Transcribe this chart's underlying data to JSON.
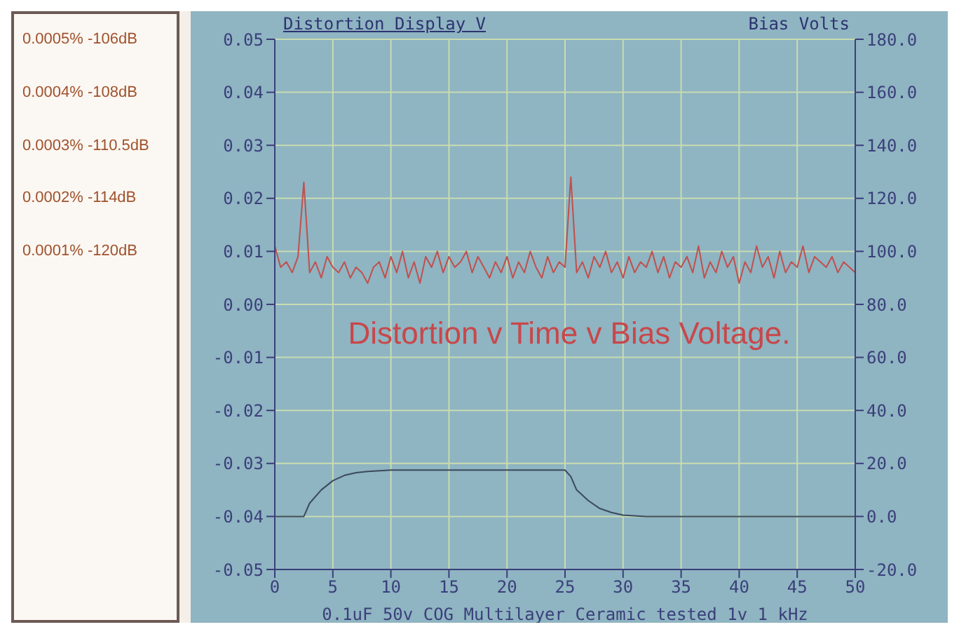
{
  "chart_data": {
    "type": "line",
    "title": "Distortion Display V",
    "subtitle": "Distortion v Time v Bias Voltage.",
    "xlabel": "0.1uF 50v COG Multilayer Ceramic tested 1v 1 kHz",
    "y2label": "Bias Volts",
    "annotations": [
      "0.0005% -106dB",
      "0.0004% -108dB",
      "0.0003% -110.5dB",
      "0.0002% -114dB",
      "0.0001% -120dB"
    ],
    "xlim": [
      0,
      50
    ],
    "xticks": [
      0,
      5,
      10,
      15,
      20,
      25,
      30,
      35,
      40,
      45,
      50
    ],
    "ylim": [
      -0.05,
      0.05
    ],
    "yticks": [
      {
        "value": -0.05,
        "label": "-0.05"
      },
      {
        "value": -0.04,
        "label": "-0.04"
      },
      {
        "value": -0.03,
        "label": "-0.03"
      },
      {
        "value": -0.02,
        "label": "-0.02"
      },
      {
        "value": -0.01,
        "label": "-0.01"
      },
      {
        "value": 0,
        "label": "0.00"
      },
      {
        "value": 0.01,
        "label": "0.01"
      },
      {
        "value": 0.02,
        "label": "0.02"
      },
      {
        "value": 0.03,
        "label": "0.03"
      },
      {
        "value": 0.04,
        "label": "0.04"
      },
      {
        "value": 0.05,
        "label": "0.05"
      }
    ],
    "y2lim": [
      -20,
      180
    ],
    "y2ticks": [
      {
        "value": -20,
        "label": "-20.0"
      },
      {
        "value": 0,
        "label": "0.0"
      },
      {
        "value": 20,
        "label": "20.0"
      },
      {
        "value": 40,
        "label": "40.0"
      },
      {
        "value": 60,
        "label": "60.0"
      },
      {
        "value": 80,
        "label": "80.0"
      },
      {
        "value": 100,
        "label": "100.0"
      },
      {
        "value": 120,
        "label": "120.0"
      },
      {
        "value": 140,
        "label": "140.0"
      },
      {
        "value": 160,
        "label": "160.0"
      },
      {
        "value": 180,
        "label": "180.0"
      }
    ],
    "grid": true,
    "marker": "none",
    "line_style": "solid",
    "series": [
      {
        "color": "#c0504d",
        "x": [
          0,
          0.5,
          1,
          1.5,
          2,
          2.5,
          3,
          3.5,
          4,
          4.5,
          5,
          5.5,
          6,
          6.5,
          7,
          7.5,
          8,
          8.5,
          9,
          9.5,
          10,
          10.5,
          11,
          11.5,
          12,
          12.5,
          13,
          13.5,
          14,
          14.5,
          15,
          15.5,
          16,
          16.5,
          17,
          17.5,
          18,
          18.5,
          19,
          19.5,
          20,
          20.5,
          21,
          21.5,
          22,
          22.5,
          23,
          23.5,
          24,
          24.5,
          25,
          25.5,
          26,
          26.5,
          27,
          27.5,
          28,
          28.5,
          29,
          29.5,
          30,
          30.5,
          31,
          31.5,
          32,
          32.5,
          33,
          33.5,
          34,
          34.5,
          35,
          35.5,
          36,
          36.5,
          37,
          37.5,
          38,
          38.5,
          39,
          39.5,
          40,
          40.5,
          41,
          41.5,
          42,
          42.5,
          43,
          43.5,
          44,
          44.5,
          45,
          45.5,
          46,
          46.5,
          47,
          47.5,
          48,
          48.5,
          49,
          49.5,
          50
        ],
        "values": [
          0.011,
          0.007,
          0.008,
          0.006,
          0.009,
          0.023,
          0.006,
          0.008,
          0.005,
          0.009,
          0.007,
          0.006,
          0.008,
          0.005,
          0.007,
          0.006,
          0.004,
          0.007,
          0.008,
          0.005,
          0.009,
          0.006,
          0.01,
          0.005,
          0.008,
          0.004,
          0.009,
          0.007,
          0.01,
          0.006,
          0.009,
          0.007,
          0.008,
          0.01,
          0.006,
          0.009,
          0.007,
          0.005,
          0.008,
          0.006,
          0.009,
          0.005,
          0.008,
          0.006,
          0.01,
          0.007,
          0.005,
          0.009,
          0.006,
          0.008,
          0.007,
          0.024,
          0.006,
          0.008,
          0.005,
          0.009,
          0.007,
          0.01,
          0.006,
          0.008,
          0.005,
          0.009,
          0.006,
          0.008,
          0.007,
          0.01,
          0.006,
          0.009,
          0.005,
          0.008,
          0.007,
          0.009,
          0.006,
          0.011,
          0.005,
          0.008,
          0.006,
          0.01,
          0.007,
          0.009,
          0.004,
          0.008,
          0.006,
          0.011,
          0.007,
          0.009,
          0.005,
          0.01,
          0.006,
          0.008,
          0.007,
          0.011,
          0.006,
          0.009,
          0.008,
          0.007,
          0.009,
          0.006,
          0.008,
          0.007,
          0.006
        ]
      },
      {
        "color": "#3b4a5c",
        "axis": "y2",
        "x": [
          0,
          2.5,
          3,
          4,
          5,
          6,
          7,
          8,
          10,
          25,
          25.5,
          26,
          27,
          28,
          29,
          30,
          32,
          50
        ],
        "values": [
          0,
          0,
          5,
          10,
          13.5,
          15.5,
          16.5,
          17,
          17.5,
          17.5,
          15,
          10,
          6,
          3,
          1.5,
          0.5,
          0,
          0
        ]
      }
    ]
  }
}
